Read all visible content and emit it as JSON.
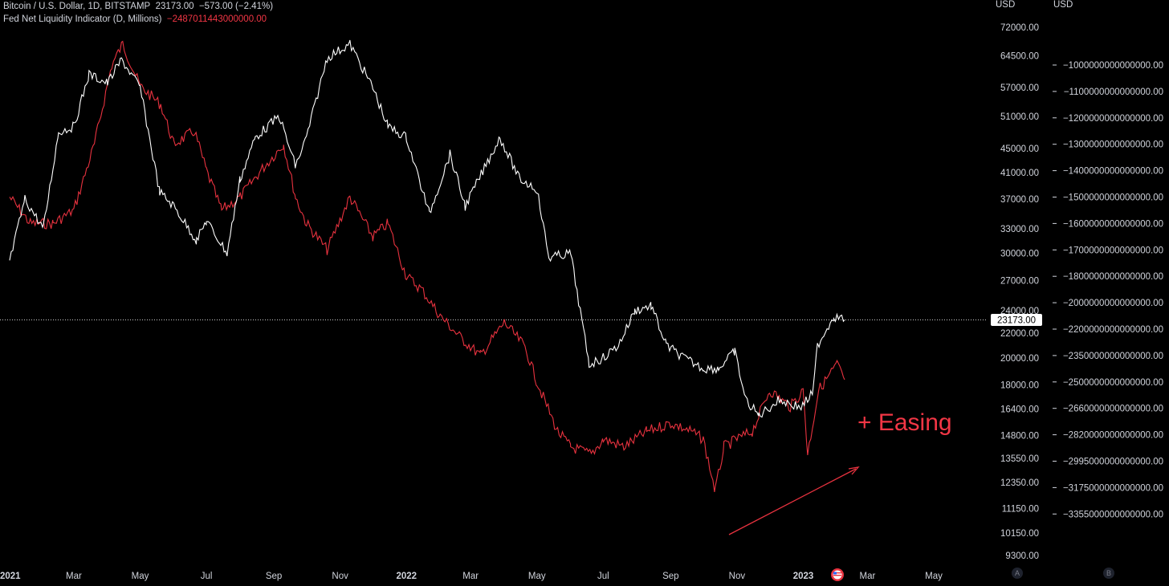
{
  "legend": {
    "symbol": "Bitcoin / U.S. Dollar, 1D, BITSTAMP",
    "last": "23173.00",
    "change": "−573.00 (−2.41%)",
    "indicator": "Fed Net Liquidity Indicator (D, Millions)",
    "indicator_value": "−2487011443000000.00"
  },
  "axis_headers": {
    "left": "USD",
    "right": "USD"
  },
  "annotation": "+ Easing",
  "price_badge": "23173.00",
  "scale_buttons": {
    "a": "A",
    "b": "B"
  },
  "colors": {
    "btc": "#ffffff",
    "liquidity": "#e8323f",
    "text": "#d1d4dc",
    "badge_bg": "#ffffff"
  },
  "chart_data": {
    "type": "line",
    "x_ticks": [
      "2021",
      "Mar",
      "May",
      "Jul",
      "Sep",
      "Nov",
      "2022",
      "Mar",
      "May",
      "Jul",
      "Sep",
      "Nov",
      "2023",
      "Mar",
      "May"
    ],
    "axes": {
      "btc": {
        "ticks": [
          "72000.00",
          "64500.00",
          "57000.00",
          "51000.00",
          "45000.00",
          "41000.00",
          "37000.00",
          "33000.00",
          "30000.00",
          "27000.00",
          "24000.00",
          "22000.00",
          "20000.00",
          "18000.00",
          "16400.00",
          "14800.00",
          "13550.00",
          "12350.00",
          "11150.00",
          "10150.00",
          "9300.00"
        ],
        "scale": "log"
      },
      "liquidity": {
        "ticks": [
          "−1000000000000000.00",
          "−1100000000000000.00",
          "−1200000000000000.00",
          "−1300000000000000.00",
          "−1400000000000000.00",
          "−1500000000000000.00",
          "−1600000000000000.00",
          "−1700000000000000.00",
          "−1800000000000000.00",
          "−2000000000000000.00",
          "−2200000000000000.00",
          "−2350000000000000.00",
          "−2500000000000000.00",
          "−2660000000000000.00",
          "−2820000000000000.00",
          "−2995000000000000.00",
          "−3175000000000000.00",
          "−3355000000000000.00"
        ]
      }
    },
    "series": [
      {
        "key": "btc",
        "x": [
          "2021-01-01",
          "2021-01-15",
          "2021-02-01",
          "2021-02-15",
          "2021-03-01",
          "2021-03-15",
          "2021-04-01",
          "2021-04-14",
          "2021-05-01",
          "2021-05-19",
          "2021-06-01",
          "2021-06-22",
          "2021-07-01",
          "2021-07-20",
          "2021-08-01",
          "2021-08-15",
          "2021-09-06",
          "2021-09-21",
          "2021-10-01",
          "2021-10-20",
          "2021-11-10",
          "2021-12-01",
          "2021-12-15",
          "2022-01-01",
          "2022-01-22",
          "2022-02-10",
          "2022-02-24",
          "2022-03-28",
          "2022-04-15",
          "2022-05-01",
          "2022-05-12",
          "2022-06-01",
          "2022-06-18",
          "2022-07-01",
          "2022-07-15",
          "2022-07-30",
          "2022-08-14",
          "2022-08-28",
          "2022-09-13",
          "2022-10-01",
          "2022-10-15",
          "2022-10-30",
          "2022-11-09",
          "2022-11-21",
          "2022-12-10",
          "2022-12-30",
          "2023-01-10",
          "2023-01-14",
          "2023-01-29",
          "2023-02-08"
        ],
        "y": [
          29000,
          37000,
          33000,
          48000,
          49000,
          60000,
          58000,
          63500,
          57000,
          38000,
          36000,
          31500,
          34000,
          30000,
          40000,
          47000,
          51000,
          42000,
          47000,
          64000,
          67500,
          57000,
          49000,
          47000,
          35000,
          44000,
          36000,
          47000,
          40000,
          38500,
          29500,
          30000,
          19500,
          20000,
          21000,
          24000,
          24500,
          21000,
          20000,
          19200,
          19200,
          20500,
          17000,
          16000,
          17000,
          16500,
          17500,
          21000,
          23500,
          23173
        ]
      },
      {
        "key": "liquidity",
        "x": [
          "2021-01-01",
          "2021-01-20",
          "2021-02-10",
          "2021-03-01",
          "2021-03-20",
          "2021-04-05",
          "2021-04-15",
          "2021-05-01",
          "2021-05-20",
          "2021-06-01",
          "2021-06-20",
          "2021-07-01",
          "2021-07-15",
          "2021-08-01",
          "2021-08-20",
          "2021-09-10",
          "2021-09-21",
          "2021-10-01",
          "2021-10-20",
          "2021-11-10",
          "2021-12-01",
          "2021-12-15",
          "2022-01-01",
          "2022-01-15",
          "2022-02-01",
          "2022-02-20",
          "2022-03-10",
          "2022-04-01",
          "2022-04-20",
          "2022-05-01",
          "2022-05-20",
          "2022-06-01",
          "2022-06-20",
          "2022-07-01",
          "2022-07-20",
          "2022-08-10",
          "2022-09-01",
          "2022-09-20",
          "2022-10-01",
          "2022-10-12",
          "2022-10-20",
          "2022-11-01",
          "2022-11-15",
          "2022-12-01",
          "2022-12-20",
          "2023-01-01",
          "2023-01-05",
          "2023-01-15",
          "2023-02-01",
          "2023-02-08"
        ],
        "y": [
          -1500000000000000,
          -1600000000000000,
          -1600000000000000,
          -1550000000000000,
          -1300000000000000,
          -1000000000000000,
          -920000000000000,
          -1080000000000000,
          -1150000000000000,
          -1300000000000000,
          -1250000000000000,
          -1400000000000000,
          -1550000000000000,
          -1500000000000000,
          -1400000000000000,
          -1300000000000000,
          -1500000000000000,
          -1600000000000000,
          -1700000000000000,
          -1500000000000000,
          -1650000000000000,
          -1600000000000000,
          -1800000000000000,
          -1900000000000000,
          -2100000000000000,
          -2250000000000000,
          -2350000000000000,
          -2150000000000000,
          -2300000000000000,
          -2500000000000000,
          -2800000000000000,
          -2900000000000000,
          -2950000000000000,
          -2850000000000000,
          -2900000000000000,
          -2800000000000000,
          -2750000000000000,
          -2800000000000000,
          -2850000000000000,
          -3200000000000000,
          -2900000000000000,
          -2850000000000000,
          -2800000000000000,
          -2550000000000000,
          -2650000000000000,
          -2550000000000000,
          -2950000000000000,
          -2550000000000000,
          -2400000000000000,
          -2487011443000000
        ]
      }
    ]
  }
}
